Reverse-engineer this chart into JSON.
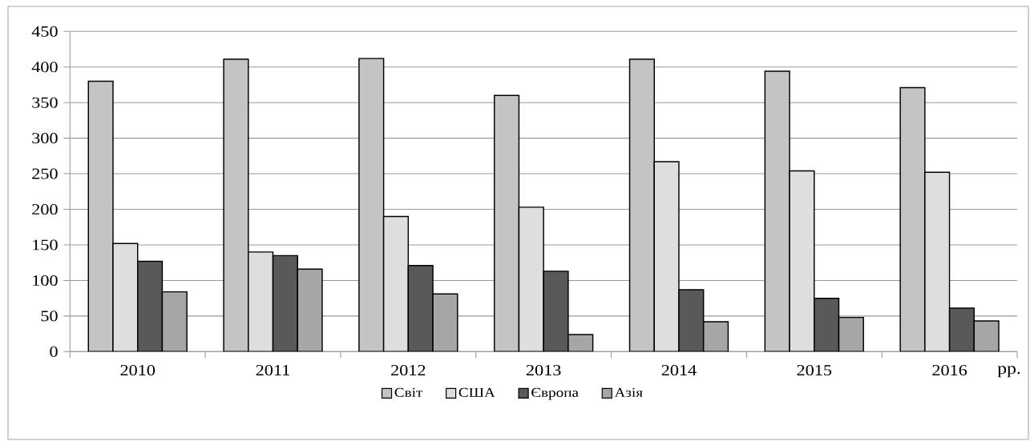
{
  "chart_data": {
    "type": "bar",
    "xlabel": "рр.",
    "categories": [
      "2010",
      "2011",
      "2012",
      "2013",
      "2014",
      "2015",
      "2016"
    ],
    "series": [
      {
        "name": "Світ",
        "color": "#c4c4c4",
        "values": [
          380,
          411,
          412,
          360,
          411,
          394,
          371
        ]
      },
      {
        "name": "США",
        "color": "#dedede",
        "values": [
          152,
          140,
          190,
          203,
          267,
          254,
          252
        ]
      },
      {
        "name": "Європа",
        "color": "#595959",
        "values": [
          127,
          135,
          121,
          113,
          87,
          75,
          61
        ]
      },
      {
        "name": "Азія",
        "color": "#a6a6a6",
        "values": [
          84,
          116,
          81,
          24,
          42,
          48,
          43
        ]
      }
    ],
    "ylim": [
      0,
      450
    ],
    "yticks": [
      0,
      50,
      100,
      150,
      200,
      250,
      300,
      350,
      400,
      450
    ],
    "grid": "y",
    "legend": "bottom"
  }
}
